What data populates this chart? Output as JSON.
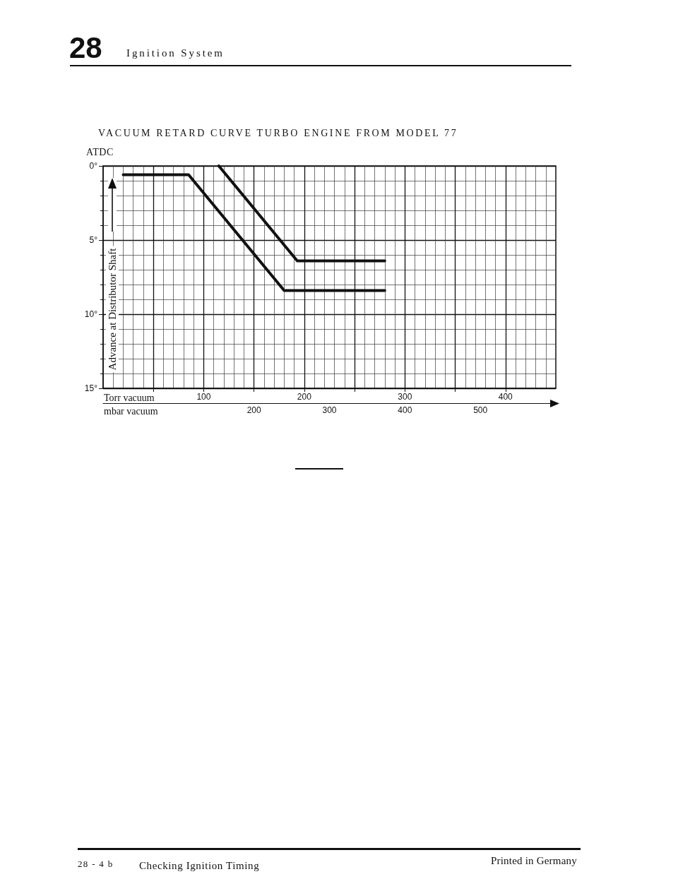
{
  "chart_data": {
    "type": "line",
    "title": "VACUUM RETARD CURVE TURBO ENGINE FROM MODEL 77",
    "xlabel": "Torr vacuum",
    "x2label": "mbar vacuum",
    "ylabel": "Advance at Distributor Shaft",
    "annotations": [
      "28",
      "Ignition System",
      "ATDC",
      "28 - 4 b",
      "Checking Ignition Timing",
      "Printed in Germany"
    ],
    "series": [
      {
        "color": "#111111",
        "x": [
          20,
          85,
          180,
          280
        ],
        "values": [
          0.6,
          0.6,
          8.4,
          8.4
        ]
      },
      {
        "color": "#111111",
        "x": [
          115,
          193,
          280
        ],
        "values": [
          0,
          6.4,
          6.4
        ]
      }
    ],
    "xlim": [
      0,
      450
    ],
    "xticks": [
      {
        "value": 50,
        "label": null
      },
      100,
      {
        "value": 150,
        "label": null
      },
      200,
      {
        "value": 250,
        "label": null
      },
      300,
      {
        "value": 350,
        "label": null
      },
      400
    ],
    "x2lim": [
      0,
      600
    ],
    "x2ticks": [
      200,
      300,
      400,
      500
    ],
    "ylim": [
      15,
      0
    ],
    "yticks": [
      {
        "value": 0,
        "label": "0°"
      },
      {
        "value": 5,
        "label": "5°"
      },
      {
        "value": 10,
        "label": "10°"
      },
      {
        "value": 15,
        "label": "15°"
      }
    ],
    "grid": true,
    "marker": "none"
  }
}
